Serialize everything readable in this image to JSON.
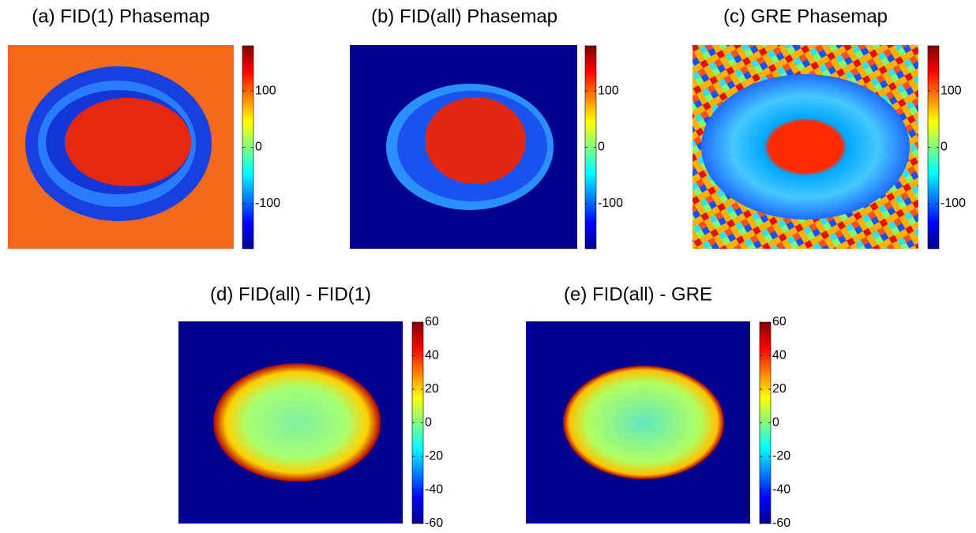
{
  "chart_data": [
    {
      "type": "heatmap",
      "title": "(a) FID(1) Phasemap",
      "colormap": "jet",
      "clim": [
        -180,
        180
      ],
      "cticks": [
        -100,
        0,
        100
      ]
    },
    {
      "type": "heatmap",
      "title": "(b) FID(all) Phasemap",
      "colormap": "jet",
      "clim": [
        -180,
        180
      ],
      "cticks": [
        -100,
        0,
        100
      ]
    },
    {
      "type": "heatmap",
      "title": "(c) GRE Phasemap",
      "colormap": "jet",
      "clim": [
        -180,
        180
      ],
      "cticks": [
        -100,
        0,
        100
      ]
    },
    {
      "type": "heatmap",
      "title": "(d) FID(all) - FID(1)",
      "colormap": "jet",
      "clim": [
        -60,
        60
      ],
      "cticks": [
        -60,
        -40,
        -20,
        0,
        20,
        40,
        60
      ]
    },
    {
      "type": "heatmap",
      "title": "(e) FID(all) - GRE",
      "colormap": "jet",
      "clim": [
        -60,
        60
      ],
      "cticks": [
        -60,
        -40,
        -20,
        0,
        20,
        40,
        60
      ]
    }
  ]
}
